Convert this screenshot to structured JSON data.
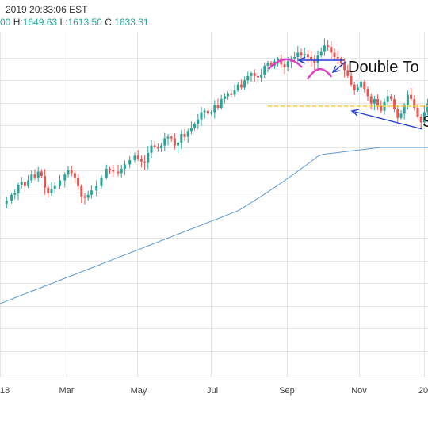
{
  "header": {
    "datetime": "2019 20:33:06 EST",
    "open_value": "00",
    "high_label": "H:",
    "high_value": "1649.63",
    "low_label": "L:",
    "low_value": "1613.50",
    "close_label": "C:",
    "close_value": "1633.31"
  },
  "colors": {
    "up": "#26a69a",
    "down": "#ef5350",
    "ma": "#5b9bd5",
    "resistance": "#f5c842",
    "top_arcs": "#e040c8",
    "arrows": "#1f3bd6",
    "grid": "#e6e6e6"
  },
  "chart_data": {
    "type": "candlestick",
    "x_tick_labels": [
      "18",
      "Mar",
      "May",
      "Jul",
      "Sep",
      "Nov",
      "20"
    ],
    "ylim": [
      0,
      100
    ],
    "annotations": [
      {
        "type": "text",
        "text": "Double To"
      },
      {
        "type": "text",
        "text": "S"
      }
    ],
    "resistance_level": 64.5,
    "trend_points": [
      [
        0,
        40
      ],
      [
        3,
        42
      ],
      [
        6,
        46
      ],
      [
        8,
        47
      ],
      [
        10,
        53
      ],
      [
        12,
        55
      ],
      [
        14,
        52
      ],
      [
        16,
        56
      ],
      [
        18,
        60
      ],
      [
        20,
        58
      ],
      [
        22,
        62
      ],
      [
        24,
        59
      ],
      [
        26,
        51
      ],
      [
        28,
        47
      ],
      [
        30,
        50
      ],
      [
        32,
        52
      ],
      [
        35,
        56
      ],
      [
        38,
        60
      ],
      [
        40,
        63
      ],
      [
        42,
        61
      ],
      [
        44,
        58
      ],
      [
        46,
        52
      ],
      [
        48,
        45
      ],
      [
        50,
        44
      ],
      [
        52,
        46
      ],
      [
        54,
        49
      ],
      [
        57,
        52
      ],
      [
        60,
        58
      ],
      [
        63,
        64
      ],
      [
        65,
        63
      ],
      [
        67,
        62
      ],
      [
        70,
        61
      ],
      [
        72,
        64
      ],
      [
        74,
        67
      ],
      [
        77,
        70
      ],
      [
        80,
        73
      ],
      [
        82,
        71
      ],
      [
        84,
        69
      ],
      [
        86,
        68
      ],
      [
        88,
        75
      ],
      [
        90,
        80
      ],
      [
        92,
        79
      ],
      [
        94,
        78
      ],
      [
        96,
        80
      ],
      [
        98,
        85
      ],
      [
        100,
        86
      ],
      [
        102,
        85
      ],
      [
        104,
        80
      ],
      [
        106,
        82
      ],
      [
        108,
        88
      ],
      [
        110,
        86
      ],
      [
        112,
        90
      ],
      [
        114,
        92
      ],
      [
        116,
        95
      ],
      [
        118,
        98
      ],
      [
        120,
        103
      ],
      [
        122,
        104
      ],
      [
        124,
        102
      ],
      [
        126,
        103
      ],
      [
        128,
        108
      ],
      [
        130,
        106
      ],
      [
        132,
        112
      ],
      [
        134,
        114
      ],
      [
        136,
        116
      ],
      [
        138,
        115
      ],
      [
        140,
        118
      ],
      [
        142,
        122
      ],
      [
        144,
        120
      ],
      [
        146,
        125
      ],
      [
        148,
        128
      ],
      [
        150,
        130
      ],
      [
        152,
        128
      ],
      [
        154,
        127
      ],
      [
        156,
        129
      ],
      [
        158,
        135
      ],
      [
        160,
        137
      ],
      [
        162,
        135
      ],
      [
        164,
        138
      ],
      [
        166,
        140
      ],
      [
        168,
        136
      ],
      [
        170,
        134
      ],
      [
        172,
        138
      ],
      [
        174,
        140
      ],
      [
        176,
        141
      ],
      [
        178,
        144
      ],
      [
        180,
        142
      ],
      [
        182,
        143
      ],
      [
        184,
        141
      ],
      [
        186,
        139
      ],
      [
        188,
        137
      ],
      [
        190,
        142
      ],
      [
        192,
        145
      ],
      [
        194,
        149
      ],
      [
        196,
        148
      ],
      [
        198,
        144
      ],
      [
        200,
        141
      ],
      [
        202,
        140
      ],
      [
        204,
        137
      ],
      [
        206,
        132
      ],
      [
        208,
        128
      ],
      [
        210,
        122
      ],
      [
        212,
        118
      ],
      [
        214,
        120
      ],
      [
        216,
        124
      ],
      [
        218,
        119
      ],
      [
        220,
        114
      ],
      [
        222,
        109
      ],
      [
        224,
        112
      ],
      [
        226,
        107
      ],
      [
        228,
        104
      ],
      [
        230,
        110
      ],
      [
        232,
        114
      ],
      [
        234,
        112
      ],
      [
        236,
        105
      ],
      [
        238,
        99
      ],
      [
        240,
        102
      ],
      [
        242,
        108
      ],
      [
        244,
        115
      ],
      [
        246,
        112
      ],
      [
        248,
        106
      ],
      [
        250,
        100
      ],
      [
        252,
        96
      ],
      [
        254,
        103
      ],
      [
        256,
        109
      ]
    ]
  }
}
